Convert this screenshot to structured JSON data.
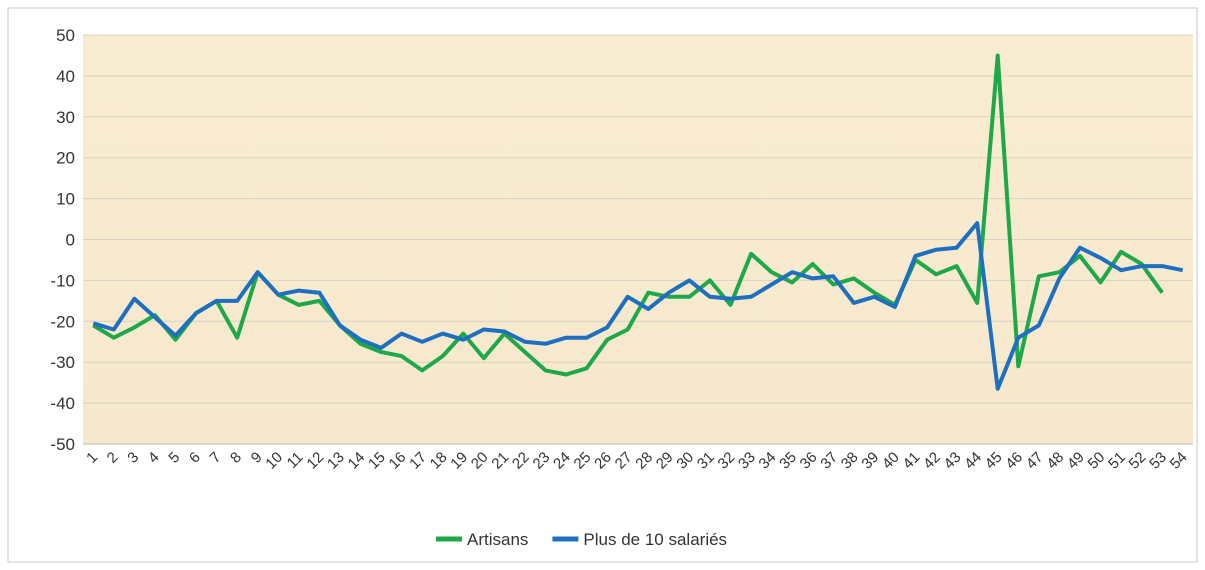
{
  "chart_data": {
    "type": "line",
    "categories": [
      "1",
      "2",
      "3",
      "4",
      "5",
      "6",
      "7",
      "8",
      "9",
      "10",
      "11",
      "12",
      "13",
      "14",
      "15",
      "16",
      "17",
      "18",
      "19",
      "20",
      "21",
      "22",
      "23",
      "24",
      "25",
      "26",
      "27",
      "28",
      "29",
      "30",
      "31",
      "32",
      "33",
      "34",
      "35",
      "36",
      "37",
      "38",
      "39",
      "40",
      "41",
      "42",
      "43",
      "44",
      "45",
      "46",
      "47",
      "48",
      "49",
      "50",
      "51",
      "52",
      "53",
      "54"
    ],
    "series": [
      {
        "name": "Artisans",
        "color": "#1ea84a",
        "values": [
          -21,
          -24,
          -21.5,
          -18.5,
          -24.5,
          -18,
          -15,
          -24,
          -8,
          -13.5,
          -16,
          -15,
          -21,
          -25.5,
          -27.5,
          -28.5,
          -32,
          -28.5,
          -23,
          -29,
          -23,
          -27.5,
          -32,
          -33,
          -31.5,
          -24.5,
          -22,
          -13,
          -14,
          -14,
          -10,
          -16,
          -3.5,
          -8,
          -10.5,
          -6,
          -11,
          -9.5,
          -13,
          -16,
          -5,
          -8.5,
          -6.5,
          -15.5,
          45,
          -31,
          -9,
          -8,
          -4,
          -10.5,
          -3,
          -6,
          -13,
          null
        ]
      },
      {
        "name": "Plus de 10 salariés",
        "color": "#1f6fc0",
        "values": [
          -20.5,
          -22,
          -14.5,
          -19,
          -23.5,
          -18,
          -15,
          -15,
          -8,
          -13.5,
          -12.5,
          -13,
          -21,
          -24.5,
          -26.5,
          -23,
          -25,
          -23,
          -24.5,
          -22,
          -22.5,
          -25,
          -25.5,
          -24,
          -24,
          -21.5,
          -14,
          -17,
          -13,
          -10,
          -14,
          -14.5,
          -14,
          -11,
          -8,
          -9.5,
          -9,
          -15.5,
          -14,
          -16.5,
          -4,
          -2.5,
          -2,
          4,
          -36.5,
          -24,
          -21,
          -9.5,
          -2,
          -4.5,
          -7.5,
          -6.5,
          -6.5,
          -7.5
        ]
      }
    ],
    "ylim": [
      -50,
      50
    ],
    "yticks": [
      -50,
      -40,
      -30,
      -20,
      -10,
      0,
      10,
      20,
      30,
      40,
      50
    ],
    "grid": true,
    "legend": "bottom"
  }
}
